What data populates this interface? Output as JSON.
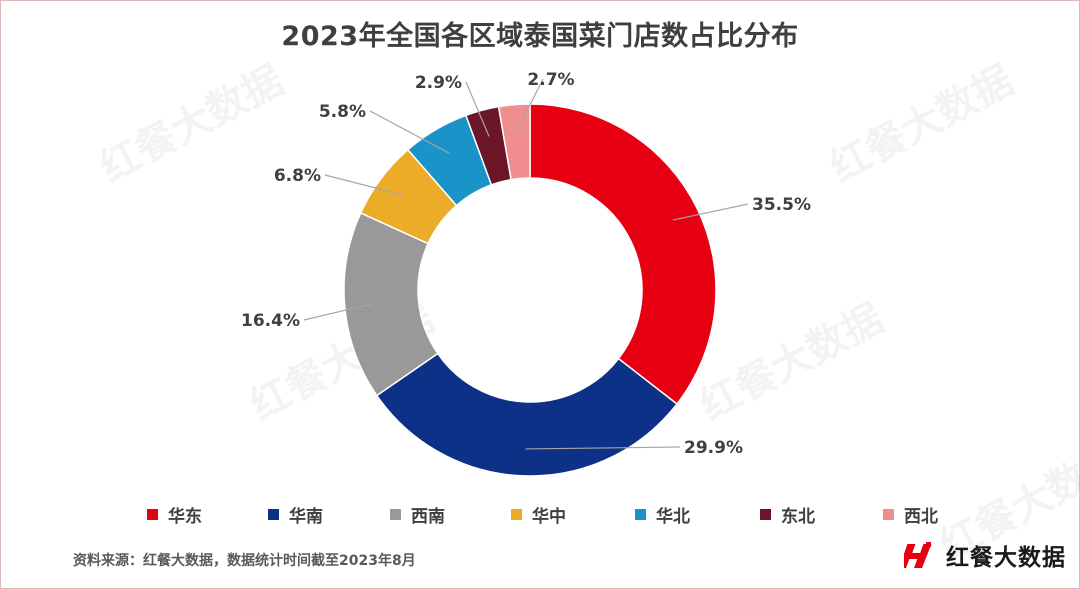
{
  "title": "2023年全国各区域泰国菜门店数占比分布",
  "source": "资料来源：红餐大数据，数据统计时间截至2023年8月",
  "brand": {
    "name": "红餐大数据"
  },
  "watermark": {
    "text": "红餐大数据"
  },
  "colors": {
    "华东": "#e60012",
    "华南": "#0d3187",
    "西南": "#999999",
    "华中": "#edac28",
    "华北": "#1a93c8",
    "东北": "#6a1628",
    "西北": "#ef8d8f"
  },
  "chart_data": {
    "type": "pie",
    "style": "donut",
    "title": "2023年全国各区域泰国菜门店数占比分布",
    "unit": "%",
    "categories": [
      "华东",
      "华南",
      "西南",
      "华中",
      "华北",
      "东北",
      "西北"
    ],
    "values": [
      35.5,
      29.9,
      16.4,
      6.8,
      5.8,
      2.9,
      2.7
    ],
    "labels": [
      "35.5%",
      "29.9%",
      "16.4%",
      "6.8%",
      "5.8%",
      "2.9%",
      "2.7%"
    ],
    "legend": {
      "position": "bottom",
      "entries": [
        "华东",
        "华南",
        "西南",
        "华中",
        "华北",
        "东北",
        "西北"
      ]
    }
  }
}
